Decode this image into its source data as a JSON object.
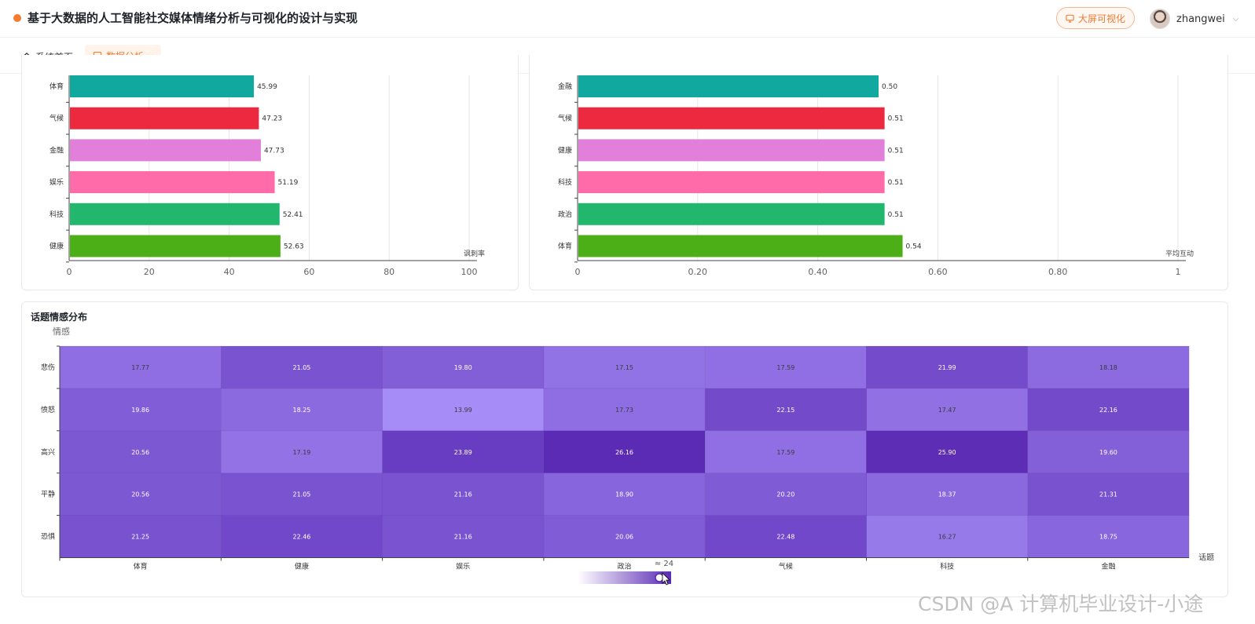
{
  "header": {
    "title": "基于大数据的人工智能社交媒体情绪分析与可视化的设计与实现",
    "big_screen_label": "大屏可视化",
    "username": "zhangwei",
    "accent_color": "#ef7a32"
  },
  "tabs": [
    {
      "label": "系统首页",
      "icon": "home-icon"
    },
    {
      "label": "数据分析",
      "icon": "chart-icon",
      "active": true
    }
  ],
  "chart_data": [
    {
      "type": "bar",
      "orientation": "horizontal",
      "categories": [
        "体育",
        "气候",
        "金融",
        "娱乐",
        "科技",
        "健康"
      ],
      "values": [
        45.99,
        47.23,
        47.73,
        51.19,
        52.41,
        52.63
      ],
      "value_labels": [
        "45.99",
        "47.23",
        "47.73",
        "51.19",
        "52.41",
        "52.63"
      ],
      "colors": [
        "#11a89f",
        "#ed293f",
        "#e27fda",
        "#ff6aa8",
        "#21b86e",
        "#4caf17"
      ],
      "xlabel": "讽刺率",
      "xlim": [
        0,
        100
      ],
      "xticks": [
        "0",
        "20",
        "40",
        "60",
        "80",
        "100"
      ],
      "grid": true
    },
    {
      "type": "bar",
      "orientation": "horizontal",
      "categories": [
        "金融",
        "气候",
        "健康",
        "科技",
        "政治",
        "体育"
      ],
      "values": [
        0.5,
        0.51,
        0.51,
        0.51,
        0.51,
        0.54
      ],
      "value_labels": [
        "0.50",
        "0.51",
        "0.51",
        "0.51",
        "0.51",
        "0.54"
      ],
      "colors": [
        "#11a89f",
        "#ed293f",
        "#e27fda",
        "#ff6aa8",
        "#21b86e",
        "#4caf17"
      ],
      "xlabel": "平均互动",
      "xlim": [
        0,
        1
      ],
      "xticks": [
        "0",
        "0.20",
        "0.40",
        "0.60",
        "0.80",
        "1"
      ],
      "grid": true
    },
    {
      "type": "heatmap",
      "title": "话题情感分布",
      "ylabel": "情感",
      "xlabel": "话题",
      "x": [
        "体育",
        "健康",
        "娱乐",
        "政治",
        "气候",
        "科技",
        "金融"
      ],
      "y": [
        "悲伤",
        "愤怒",
        "高兴",
        "平静",
        "恐惧"
      ],
      "values": [
        [
          17.77,
          21.05,
          19.8,
          17.15,
          17.59,
          21.99,
          18.18
        ],
        [
          19.86,
          18.25,
          13.99,
          17.73,
          22.15,
          17.47,
          22.16
        ],
        [
          20.56,
          17.19,
          23.89,
          26.16,
          17.59,
          25.9,
          19.6
        ],
        [
          20.56,
          21.05,
          21.16,
          18.9,
          20.2,
          18.37,
          21.31
        ],
        [
          21.25,
          22.46,
          21.16,
          20.06,
          22.48,
          16.27,
          18.75
        ]
      ],
      "range": [
        13.99,
        26.16
      ],
      "color_low": "#a58cf6",
      "color_high": "#5b2bb5",
      "legend_label": "≈ 24"
    }
  ],
  "watermark": "CSDN @A 计算机毕业设计-小途"
}
